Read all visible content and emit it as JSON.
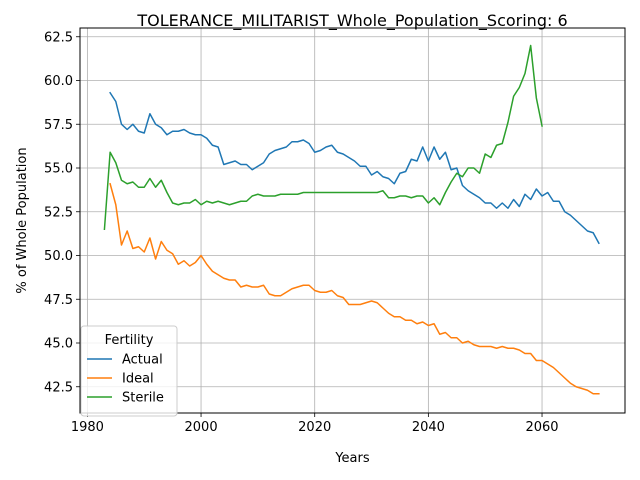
{
  "chart_data": {
    "type": "line",
    "title": "TOLERANCE_MILITARIST_Whole_Population_Scoring: 6",
    "xlabel": "Years",
    "ylabel": "% of Whole Population",
    "xlim": [
      1978.7,
      2074.6
    ],
    "ylim": [
      41.0,
      63.0
    ],
    "xticks": [
      1980,
      2000,
      2020,
      2040,
      2060
    ],
    "xtick_labels": [
      "1980",
      "2000",
      "2020",
      "2040",
      "2060"
    ],
    "yticks": [
      42.5,
      45.0,
      47.5,
      50.0,
      52.5,
      55.0,
      57.5,
      60.0,
      62.5
    ],
    "ytick_labels": [
      "42.5",
      "45.0",
      "47.5",
      "50.0",
      "52.5",
      "55.0",
      "57.5",
      "60.0",
      "62.5"
    ],
    "grid": true,
    "legend": {
      "title": "Fertility",
      "position": "lower-left"
    },
    "series": [
      {
        "name": "Actual",
        "color": "#1f77b4",
        "x": [
          1984,
          1985,
          1986,
          1987,
          1988,
          1989,
          1990,
          1991,
          1992,
          1993,
          1994,
          1995,
          1996,
          1997,
          1998,
          1999,
          2000,
          2001,
          2002,
          2003,
          2004,
          2005,
          2006,
          2007,
          2008,
          2009,
          2010,
          2011,
          2012,
          2013,
          2014,
          2015,
          2016,
          2017,
          2018,
          2019,
          2020,
          2021,
          2022,
          2023,
          2024,
          2025,
          2026,
          2027,
          2028,
          2029,
          2030,
          2031,
          2032,
          2033,
          2034,
          2035,
          2036,
          2037,
          2038,
          2039,
          2040,
          2041,
          2042,
          2043,
          2044,
          2045,
          2046,
          2047,
          2048,
          2049,
          2050,
          2051,
          2052,
          2053,
          2054,
          2055,
          2056,
          2057,
          2058,
          2059,
          2060,
          2061,
          2062,
          2063,
          2064,
          2065,
          2066,
          2067,
          2068,
          2069,
          2070
        ],
        "values": [
          59.3,
          58.8,
          57.5,
          57.2,
          57.5,
          57.1,
          57.0,
          58.1,
          57.5,
          57.3,
          56.9,
          57.1,
          57.1,
          57.2,
          57.0,
          56.9,
          56.9,
          56.7,
          56.3,
          56.2,
          55.2,
          55.3,
          55.4,
          55.2,
          55.2,
          54.9,
          55.1,
          55.3,
          55.8,
          56.0,
          56.1,
          56.2,
          56.5,
          56.5,
          56.6,
          56.4,
          55.9,
          56.0,
          56.2,
          56.3,
          55.9,
          55.8,
          55.6,
          55.4,
          55.1,
          55.1,
          54.6,
          54.8,
          54.5,
          54.4,
          54.1,
          54.7,
          54.8,
          55.5,
          55.4,
          56.2,
          55.4,
          56.2,
          55.5,
          55.9,
          54.9,
          55.0,
          54.0,
          53.7,
          53.5,
          53.3,
          53.0,
          53.0,
          52.7,
          53.0,
          52.7,
          53.2,
          52.8,
          53.5,
          53.2,
          53.8,
          53.4,
          53.6,
          53.1,
          53.1,
          52.5,
          52.3,
          52.0,
          51.7,
          51.4,
          51.3,
          50.7
        ]
      },
      {
        "name": "Ideal",
        "color": "#ff7f0e",
        "x": [
          1984,
          1985,
          1986,
          1987,
          1988,
          1989,
          1990,
          1991,
          1992,
          1993,
          1994,
          1995,
          1996,
          1997,
          1998,
          1999,
          2000,
          2001,
          2002,
          2003,
          2004,
          2005,
          2006,
          2007,
          2008,
          2009,
          2010,
          2011,
          2012,
          2013,
          2014,
          2015,
          2016,
          2017,
          2018,
          2019,
          2020,
          2021,
          2022,
          2023,
          2024,
          2025,
          2026,
          2027,
          2028,
          2029,
          2030,
          2031,
          2032,
          2033,
          2034,
          2035,
          2036,
          2037,
          2038,
          2039,
          2040,
          2041,
          2042,
          2043,
          2044,
          2045,
          2046,
          2047,
          2048,
          2049,
          2050,
          2051,
          2052,
          2053,
          2054,
          2055,
          2056,
          2057,
          2058,
          2059,
          2060,
          2061,
          2062,
          2063,
          2064,
          2065,
          2066,
          2067,
          2068,
          2069,
          2070
        ],
        "values": [
          54.1,
          52.9,
          50.6,
          51.4,
          50.4,
          50.5,
          50.2,
          51.0,
          49.8,
          50.8,
          50.3,
          50.1,
          49.5,
          49.7,
          49.4,
          49.6,
          50.0,
          49.5,
          49.1,
          48.9,
          48.7,
          48.6,
          48.6,
          48.2,
          48.3,
          48.2,
          48.2,
          48.3,
          47.8,
          47.7,
          47.7,
          47.9,
          48.1,
          48.2,
          48.3,
          48.3,
          48.0,
          47.9,
          47.9,
          48.0,
          47.7,
          47.6,
          47.2,
          47.2,
          47.2,
          47.3,
          47.4,
          47.3,
          47.0,
          46.7,
          46.5,
          46.5,
          46.3,
          46.3,
          46.1,
          46.2,
          46.0,
          46.1,
          45.5,
          45.6,
          45.3,
          45.3,
          45.0,
          45.1,
          44.9,
          44.8,
          44.8,
          44.8,
          44.7,
          44.8,
          44.7,
          44.7,
          44.6,
          44.4,
          44.4,
          44.0,
          44.0,
          43.8,
          43.6,
          43.3,
          43.0,
          42.7,
          42.5,
          42.4,
          42.3,
          42.1,
          42.1
        ]
      },
      {
        "name": "Sterile",
        "color": "#2ca02c",
        "x": [
          1983,
          1984,
          1985,
          1986,
          1987,
          1988,
          1989,
          1990,
          1991,
          1992,
          1993,
          1994,
          1995,
          1996,
          1997,
          1998,
          1999,
          2000,
          2001,
          2002,
          2003,
          2004,
          2005,
          2006,
          2007,
          2008,
          2009,
          2010,
          2011,
          2012,
          2013,
          2014,
          2015,
          2016,
          2017,
          2018,
          2019,
          2020,
          2021,
          2022,
          2023,
          2024,
          2025,
          2026,
          2027,
          2028,
          2029,
          2030,
          2031,
          2032,
          2033,
          2034,
          2035,
          2036,
          2037,
          2038,
          2039,
          2040,
          2041,
          2042,
          2043,
          2044,
          2045,
          2046,
          2047,
          2048,
          2049,
          2050,
          2051,
          2052,
          2053,
          2054,
          2055,
          2056,
          2057,
          2058,
          2059,
          2060
        ],
        "values": [
          51.5,
          55.9,
          55.3,
          54.3,
          54.1,
          54.2,
          53.9,
          53.9,
          54.4,
          53.9,
          54.3,
          53.6,
          53.0,
          52.9,
          53.0,
          53.0,
          53.2,
          52.9,
          53.1,
          53.0,
          53.1,
          53.0,
          52.9,
          53.0,
          53.1,
          53.1,
          53.4,
          53.5,
          53.4,
          53.4,
          53.4,
          53.5,
          53.5,
          53.5,
          53.5,
          53.6,
          53.6,
          53.6,
          53.6,
          53.6,
          53.6,
          53.6,
          53.6,
          53.6,
          53.6,
          53.6,
          53.6,
          53.6,
          53.6,
          53.7,
          53.3,
          53.3,
          53.4,
          53.4,
          53.3,
          53.4,
          53.4,
          53.0,
          53.3,
          52.9,
          53.6,
          54.2,
          54.7,
          54.5,
          55.0,
          55.0,
          54.7,
          55.8,
          55.6,
          56.3,
          56.4,
          57.6,
          59.1,
          59.6,
          60.4,
          62.0,
          59.0,
          57.4
        ]
      }
    ]
  }
}
